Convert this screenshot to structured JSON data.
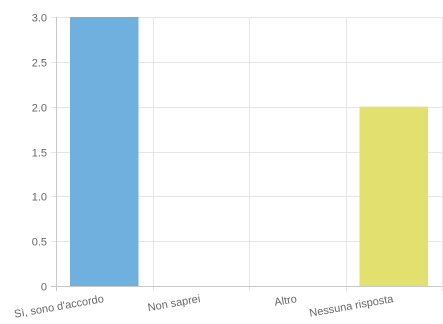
{
  "chart_data": {
    "type": "bar",
    "title": "",
    "xlabel": "",
    "ylabel": "",
    "categories": [
      "Sì, sono d'accordo",
      "Non saprei",
      "Altro",
      "Nessuna risposta"
    ],
    "values": [
      3,
      0,
      0,
      2
    ],
    "colors": [
      "#6fb0de",
      "#6fb0de",
      "#6fb0de",
      "#e2e06e"
    ],
    "ylim": [
      0,
      3
    ],
    "y_ticks": [
      "3.0",
      "2.5",
      "2.0",
      "1.5",
      "1.0",
      "0.5",
      "0"
    ],
    "y_tick_values": [
      3,
      2.5,
      2,
      1.5,
      1,
      0.5,
      0
    ],
    "grid": true,
    "legend": "none"
  }
}
